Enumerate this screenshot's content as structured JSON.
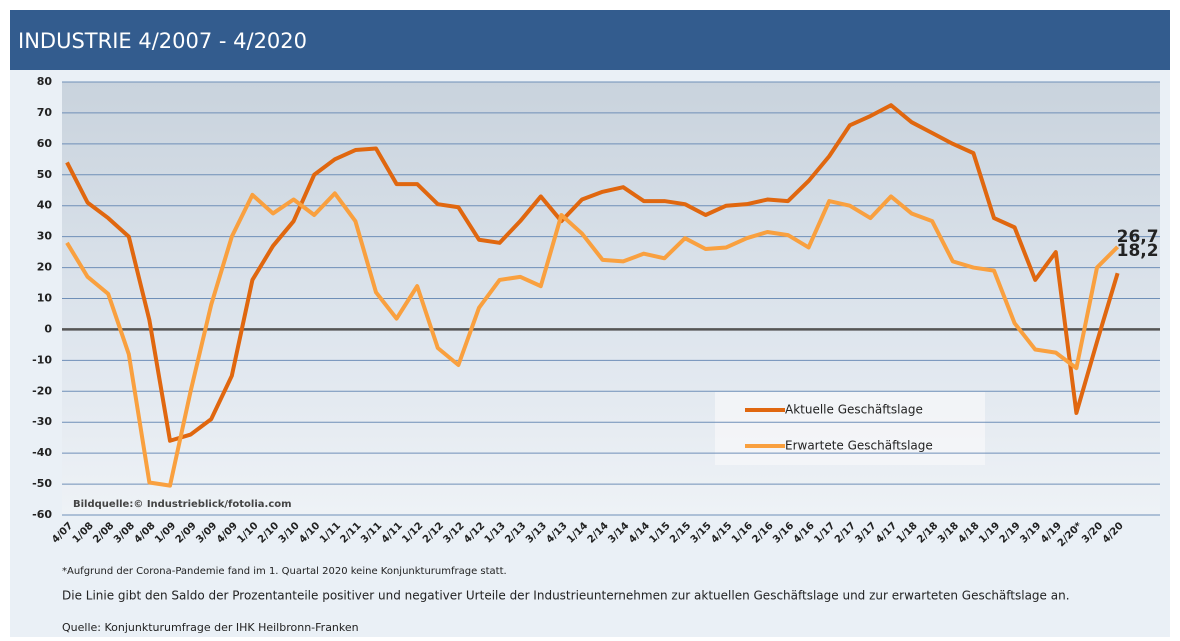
{
  "chart_data": {
    "type": "line",
    "title": "INDUSTRIE 4/2007 - 4/2020",
    "image_credit": "Bildquelle:© Industrieblick/fotolia.com",
    "footnote": "*Aufgrund der Corona-Pandemie fand im 1. Quartal 2020 keine Konjunkturumfrage statt.",
    "description": "Die Linie gibt den Saldo der Prozentanteile positiver und negativer Urteile der Industrieunternehmen zur aktuellen Geschäftslage und zur erwarteten Geschäftslage an.",
    "source": "Quelle: Konjunkturumfrage der IHK Heilbronn-Franken",
    "categories": [
      "4/07",
      "1/08",
      "2/08",
      "3/08",
      "4/08",
      "1/09",
      "2/09",
      "3/09",
      "4/09",
      "1/10",
      "2/10",
      "3/10",
      "4/10",
      "1/11",
      "2/11",
      "3/11",
      "4/11",
      "1/12",
      "2/12",
      "3/12",
      "4/12",
      "1/13",
      "2/13",
      "3/13",
      "4/13",
      "1/14",
      "2/14",
      "3/14",
      "4/14",
      "1/15",
      "2/15",
      "3/15",
      "4/15",
      "1/16",
      "2/16",
      "3/16",
      "4/16",
      "1/17",
      "2/17",
      "3/17",
      "4/17",
      "1/18",
      "2/18",
      "3/18",
      "4/18",
      "1/19",
      "2/19",
      "3/19",
      "4/19",
      "2/20*",
      "3/20",
      "4/20"
    ],
    "series": [
      {
        "name": "Aktuelle Geschäftslage",
        "color": "#e0670f",
        "values": [
          54,
          41,
          36,
          30,
          3,
          -36,
          -34,
          -29,
          -15,
          16,
          27,
          35,
          50,
          55,
          58,
          58.5,
          47,
          47,
          40.5,
          39.5,
          29,
          28,
          35,
          43,
          35,
          42,
          44.5,
          46,
          41.5,
          41.5,
          40.5,
          37,
          40,
          40.5,
          42,
          41.5,
          48,
          56,
          66,
          69,
          72.5,
          67,
          63.5,
          60,
          57,
          36,
          33,
          16,
          25,
          -27,
          -4,
          18.2
        ],
        "value_labels": [
          null,
          null,
          null,
          null,
          null,
          null,
          null,
          null,
          null,
          null,
          null,
          null,
          null,
          null,
          null,
          null,
          null,
          null,
          null,
          null,
          null,
          null,
          null,
          null,
          null,
          null,
          null,
          null,
          null,
          null,
          null,
          null,
          null,
          null,
          null,
          null,
          null,
          null,
          null,
          null,
          null,
          null,
          null,
          null,
          null,
          null,
          null,
          null,
          null,
          null,
          null,
          "18,2"
        ]
      },
      {
        "name": "Erwartete Geschäftslage",
        "color": "#f9a03f",
        "values": [
          28,
          17,
          11.5,
          -8,
          -49.5,
          -50.5,
          -20,
          8,
          30,
          43.5,
          37.5,
          42,
          37,
          44,
          35,
          12,
          3.5,
          14,
          -6,
          -11.5,
          7,
          16,
          17,
          14,
          37,
          31,
          22.5,
          22,
          24.5,
          23,
          29.5,
          26,
          26.5,
          29.5,
          31.5,
          30.5,
          26.5,
          41.5,
          40,
          36,
          43,
          37.5,
          35,
          22,
          20,
          19,
          2,
          -6.5,
          -7.5,
          -12.5,
          20,
          26.7
        ],
        "value_labels": [
          null,
          null,
          null,
          null,
          null,
          null,
          null,
          null,
          null,
          null,
          null,
          null,
          null,
          null,
          null,
          null,
          null,
          null,
          null,
          null,
          null,
          null,
          null,
          null,
          null,
          null,
          null,
          null,
          null,
          null,
          null,
          null,
          null,
          null,
          null,
          null,
          null,
          null,
          null,
          null,
          null,
          null,
          null,
          null,
          null,
          null,
          null,
          null,
          null,
          null,
          null,
          "26,7"
        ]
      }
    ],
    "ylim": [
      -60,
      80
    ],
    "yticks": [
      -60,
      -50,
      -40,
      -30,
      -20,
      -10,
      0,
      10,
      20,
      30,
      40,
      50,
      60,
      70,
      80
    ],
    "grid": true
  }
}
